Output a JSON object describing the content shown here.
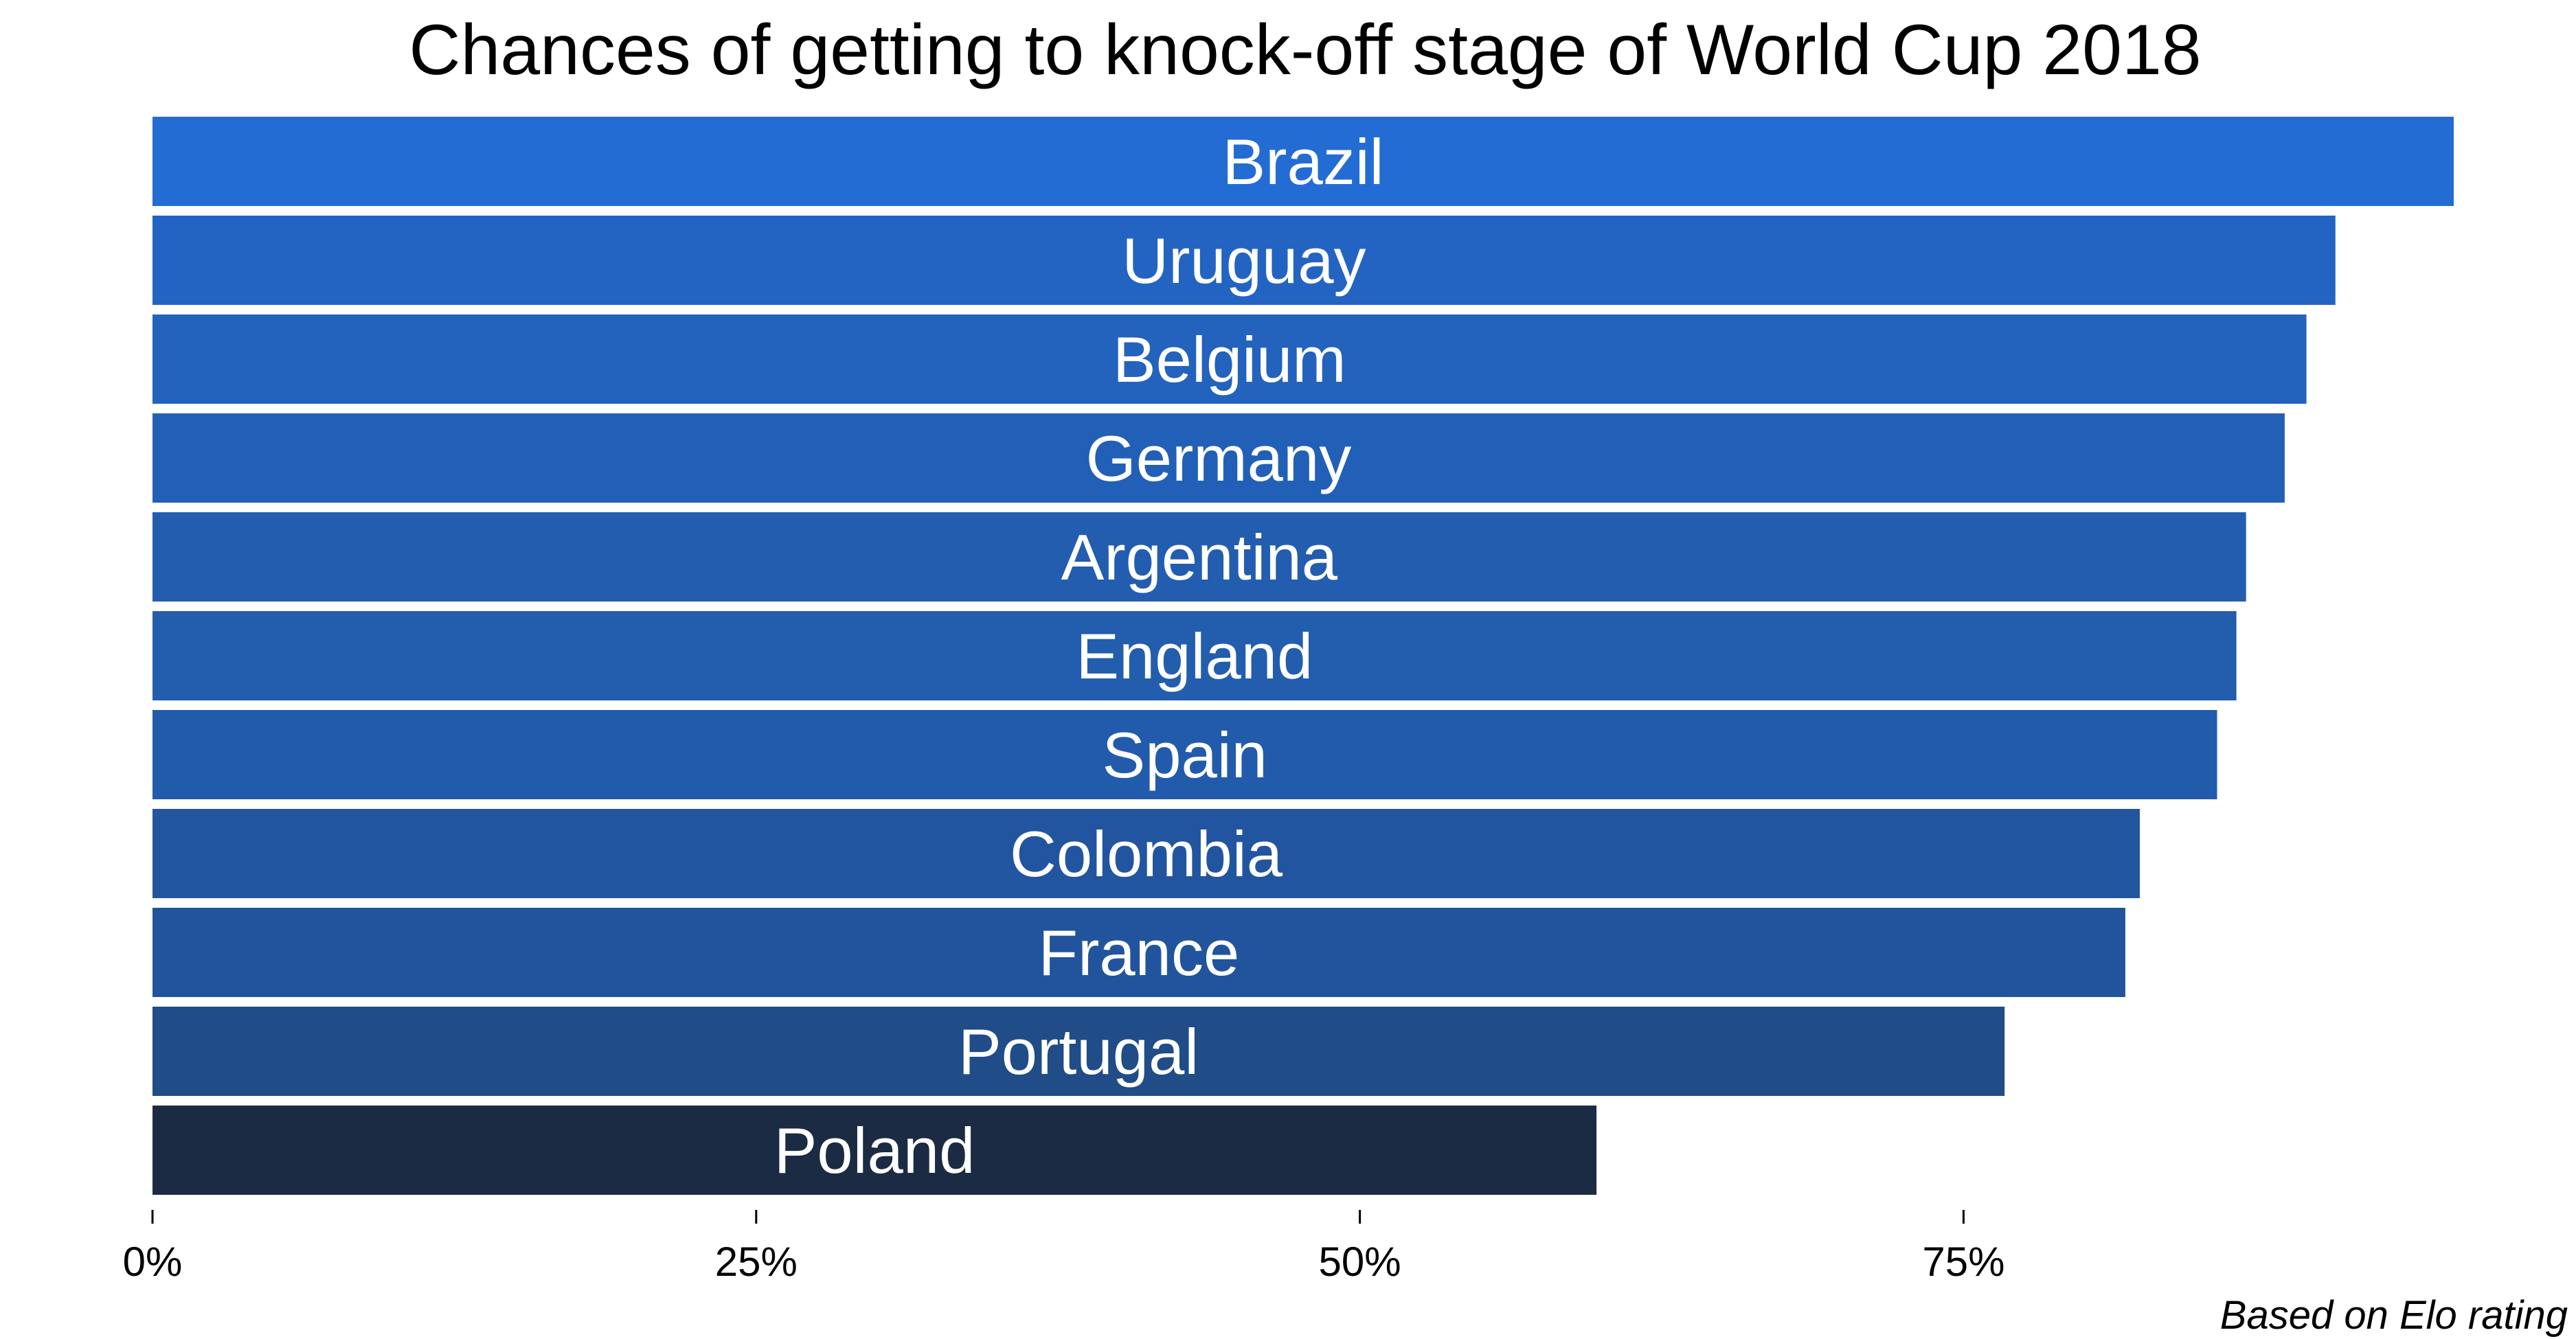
{
  "chart_data": {
    "type": "bar",
    "orientation": "horizontal",
    "title": "Chances of getting to knock-off stage of World Cup 2018",
    "caption": "Based on Elo rating",
    "xlabel": "",
    "ylabel": "",
    "xlim": [
      0,
      95.3
    ],
    "x_ticks": [
      {
        "value": 0,
        "label": "0%"
      },
      {
        "value": 25,
        "label": "25%"
      },
      {
        "value": 50,
        "label": "50%"
      },
      {
        "value": 75,
        "label": "75%"
      }
    ],
    "grid": false,
    "legend": "none",
    "categories": [
      "Brazil",
      "Uruguay",
      "Belgium",
      "Germany",
      "Argentina",
      "England",
      "Spain",
      "Colombia",
      "France",
      "Portugal",
      "Poland"
    ],
    "values": [
      95.3,
      90.4,
      89.2,
      88.3,
      86.7,
      86.3,
      85.5,
      82.3,
      81.7,
      76.7,
      59.8
    ],
    "colors": [
      "#236cd4",
      "#2364c2",
      "#2362bd",
      "#2260b7",
      "#225db0",
      "#225dae",
      "#225bab",
      "#2255a0",
      "#21549c",
      "#204c87",
      "#1c2b44"
    ],
    "label_color": "#ffffff"
  }
}
